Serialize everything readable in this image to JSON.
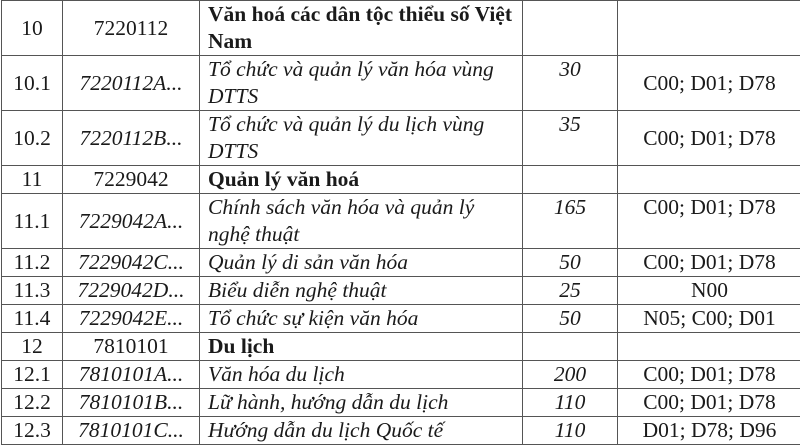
{
  "rows": [
    {
      "no": "10",
      "code": "7220112",
      "name": "Văn hoá các dân tộc thiểu số Việt Nam",
      "quota": "",
      "combos": "",
      "type": "major",
      "lines": 2
    },
    {
      "no": "10.1",
      "code": "7220112A...",
      "name": "Tổ chức và quản lý văn hóa vùng DTTS",
      "quota": "30",
      "combos": "C00; D01; D78",
      "type": "sub",
      "lines": 2
    },
    {
      "no": "10.2",
      "code": "7220112B...",
      "name": "Tổ chức và quản lý du lịch vùng DTTS",
      "quota": "35",
      "combos": "C00; D01; D78",
      "type": "sub",
      "lines": 2
    },
    {
      "no": "11",
      "code": "7229042",
      "name": "Quản lý văn hoá",
      "quota": "",
      "combos": "",
      "type": "major",
      "lines": 1
    },
    {
      "no": "11.1",
      "code": "7229042A...",
      "name": "Chính sách văn hóa và quản lý nghệ thuật",
      "quota": "165",
      "combos": "C00; D01; D78",
      "type": "sub",
      "lines": 2
    },
    {
      "no": "11.2",
      "code": "7229042C...",
      "name": "Quản lý di sản văn hóa",
      "quota": "50",
      "combos": "C00; D01; D78",
      "type": "sub",
      "lines": 1
    },
    {
      "no": "11.3",
      "code": "7229042D...",
      "name": "Biểu diễn nghệ thuật",
      "quota": "25",
      "combos": "N00",
      "type": "sub",
      "lines": 1
    },
    {
      "no": "11.4",
      "code": "7229042E...",
      "name": "Tổ chức sự kiện văn hóa",
      "quota": "50",
      "combos": "N05; C00; D01",
      "type": "sub",
      "lines": 1
    },
    {
      "no": "12",
      "code": "7810101",
      "name": "Du lịch",
      "quota": "",
      "combos": "",
      "type": "major",
      "lines": 1
    },
    {
      "no": "12.1",
      "code": "7810101A...",
      "name": "Văn hóa du lịch",
      "quota": "200",
      "combos": "C00; D01; D78",
      "type": "sub",
      "lines": 1
    },
    {
      "no": "12.2",
      "code": "7810101B...",
      "name": "Lữ hành, hướng dẫn du lịch",
      "quota": "110",
      "combos": "C00; D01; D78",
      "type": "sub",
      "lines": 1
    },
    {
      "no": "12.3",
      "code": "7810101C...",
      "name": "Hướng dẫn du lịch Quốc tế",
      "quota": "110",
      "combos": "D01; D78; D96",
      "type": "sub",
      "lines": 1
    }
  ]
}
